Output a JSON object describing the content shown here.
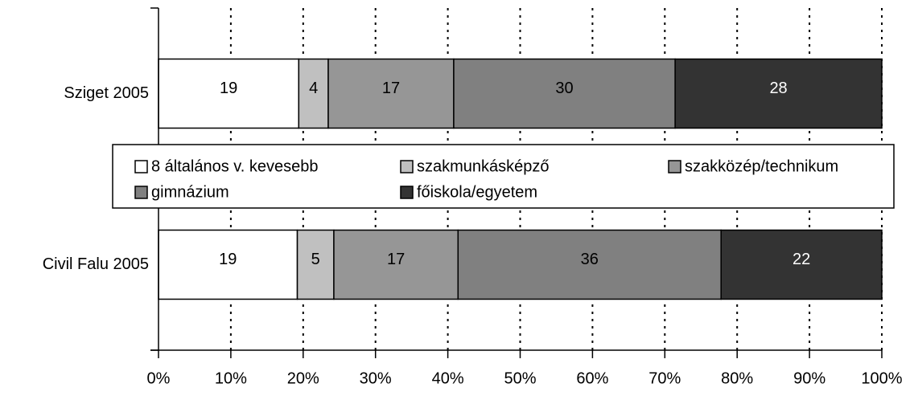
{
  "chart_data": {
    "type": "bar",
    "orientation": "horizontal",
    "stacked": "percent",
    "categories": [
      "Sziget 2005",
      "Civil Falu 2005"
    ],
    "series": [
      {
        "name": "8 általános v. kevesebb",
        "color": "#ffffff",
        "label_color": "#000000",
        "values": [
          19,
          19
        ]
      },
      {
        "name": "szakmunkásképző",
        "color": "#c0c0c0",
        "label_color": "#000000",
        "values": [
          4,
          5
        ]
      },
      {
        "name": "szakközép/technikum",
        "color": "#969696",
        "label_color": "#000000",
        "values": [
          17,
          17
        ]
      },
      {
        "name": "gimnázium",
        "color": "#808080",
        "label_color": "#000000",
        "values": [
          30,
          36
        ]
      },
      {
        "name": "főiskola/egyetem",
        "color": "#333333",
        "label_color": "#ffffff",
        "values": [
          28,
          22
        ]
      }
    ],
    "xlim": [
      0,
      100
    ],
    "xticks": [
      {
        "value": 0,
        "label": "0%"
      },
      {
        "value": 10,
        "label": "10%"
      },
      {
        "value": 20,
        "label": "20%"
      },
      {
        "value": 30,
        "label": "30%"
      },
      {
        "value": 40,
        "label": "40%"
      },
      {
        "value": 50,
        "label": "50%"
      },
      {
        "value": 60,
        "label": "60%"
      },
      {
        "value": 70,
        "label": "70%"
      },
      {
        "value": 80,
        "label": "80%"
      },
      {
        "value": 90,
        "label": "90%"
      },
      {
        "value": 100,
        "label": "100%"
      }
    ],
    "grid": true,
    "legend": "center"
  }
}
